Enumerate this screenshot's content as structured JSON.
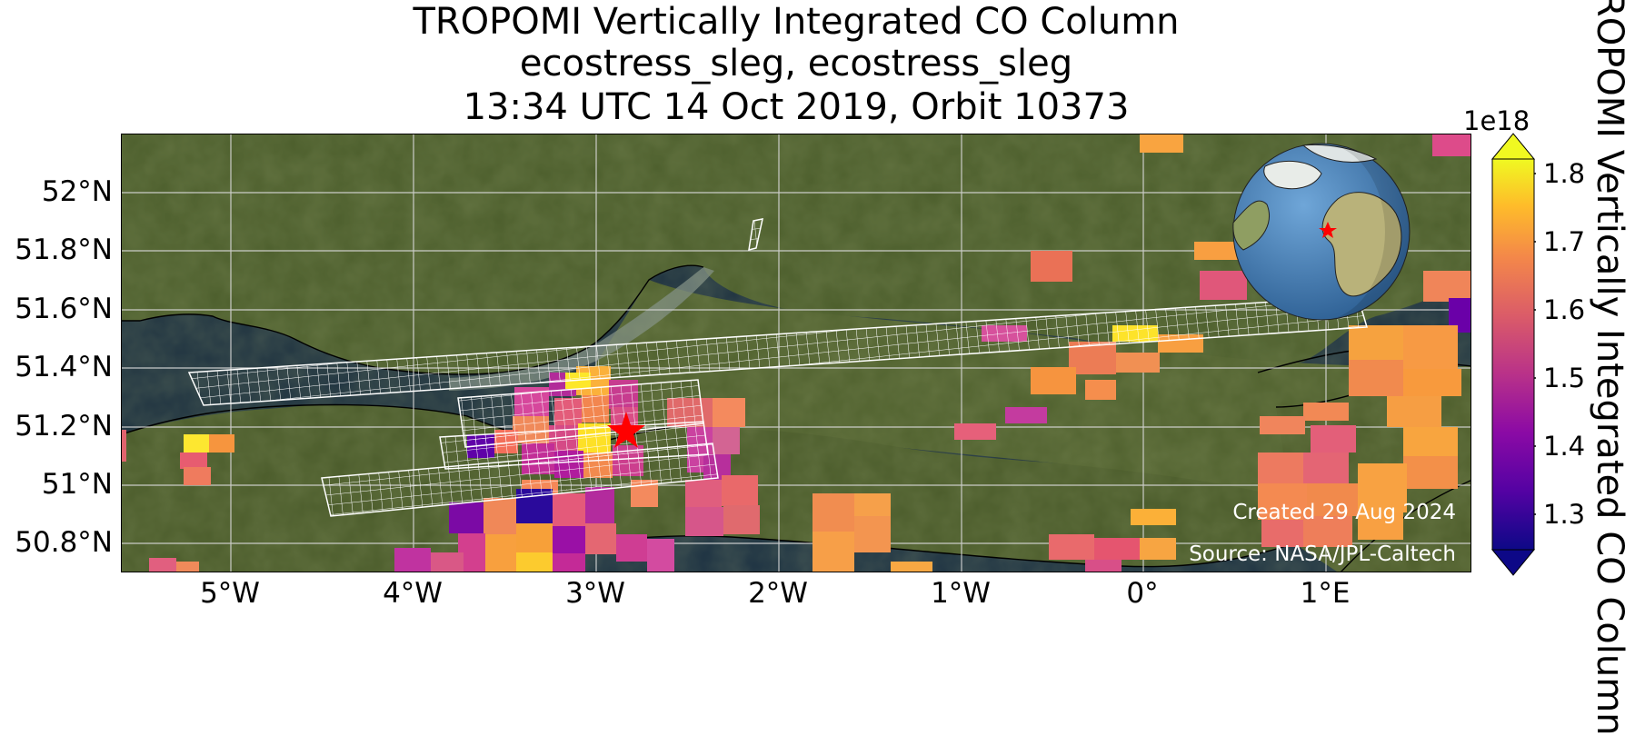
{
  "title_lines": [
    "TROPOMI Vertically Integrated CO Column",
    "ecostress_sleg, ecostress_sleg",
    "13:34 UTC 14 Oct 2019, Orbit 10373"
  ],
  "map": {
    "lon_range": [
      -5.6,
      1.8
    ],
    "lat_range": [
      50.7,
      52.2
    ],
    "lat_ticks": [
      "52°N",
      "51.8°N",
      "51.6°N",
      "51.4°N",
      "51.2°N",
      "51°N",
      "50.8°N"
    ],
    "lon_ticks": [
      "5°W",
      "4°W",
      "3°W",
      "2°W",
      "1°W",
      "0°",
      "1°E"
    ],
    "gridlines": true,
    "basemap": "satellite imagery",
    "target_marker": {
      "icon": "red-star",
      "lon": -2.76,
      "lat": 51.2
    },
    "inset": "globe locator with red star over southern England",
    "credits": [
      "Created 29 Aug 2024",
      "Source: NASA/JPL-Caltech"
    ]
  },
  "colorbar": {
    "title": "TROPOMI Vertically Integrated CO Column",
    "exponent": "1e18",
    "ticks": [
      "1.8",
      "1.7",
      "1.6",
      "1.5",
      "1.4",
      "1.3"
    ],
    "range": [
      1.24,
      1.84
    ],
    "colormap": "plasma",
    "extend": "both"
  }
}
